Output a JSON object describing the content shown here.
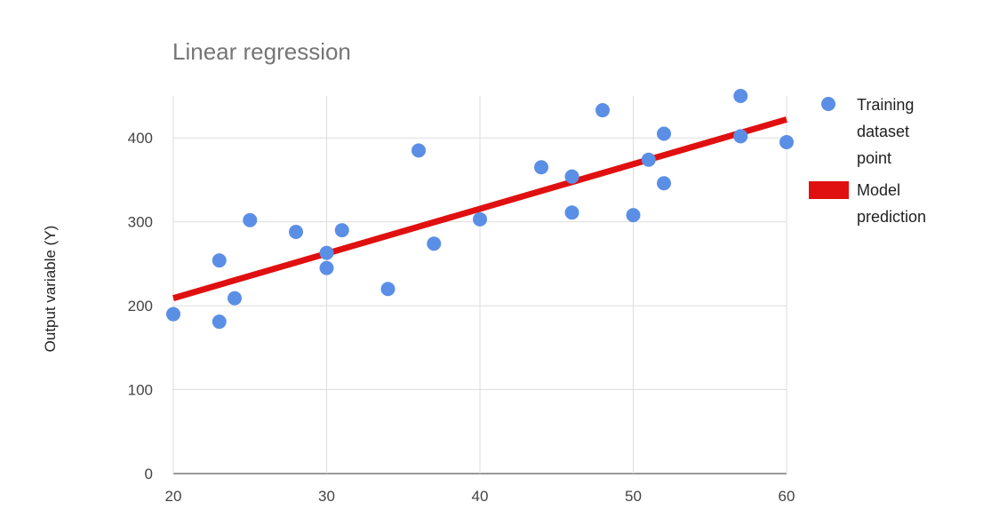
{
  "chart_data": {
    "type": "scatter",
    "title": "Linear regression",
    "xlabel": "",
    "ylabel": "Output variable (Y)",
    "xlim": [
      20,
      60
    ],
    "ylim": [
      0,
      450
    ],
    "x_ticks": [
      20,
      30,
      40,
      50,
      60
    ],
    "y_ticks": [
      0,
      100,
      200,
      300,
      400
    ],
    "grid": true,
    "legend_position": "right",
    "series": [
      {
        "name": "Training dataset point",
        "legend_lines": [
          "Training",
          "dataset",
          "point"
        ],
        "kind": "scatter",
        "color": "#5b8fe6",
        "points": [
          [
            20,
            190
          ],
          [
            23,
            254
          ],
          [
            23,
            181
          ],
          [
            24,
            209
          ],
          [
            25,
            302
          ],
          [
            28,
            288
          ],
          [
            30,
            263
          ],
          [
            30,
            245
          ],
          [
            31,
            290
          ],
          [
            34,
            220
          ],
          [
            36,
            385
          ],
          [
            37,
            274
          ],
          [
            40,
            303
          ],
          [
            44,
            365
          ],
          [
            46,
            354
          ],
          [
            46,
            311
          ],
          [
            48,
            433
          ],
          [
            50,
            308
          ],
          [
            51,
            374
          ],
          [
            52,
            405
          ],
          [
            52,
            346
          ],
          [
            57,
            450
          ],
          [
            57,
            402
          ],
          [
            60,
            395
          ]
        ]
      },
      {
        "name": "Model prediction",
        "legend_lines": [
          "Model",
          "prediction"
        ],
        "kind": "line",
        "color": "#e01010",
        "points": [
          [
            20,
            209
          ],
          [
            60,
            422
          ]
        ]
      }
    ]
  }
}
